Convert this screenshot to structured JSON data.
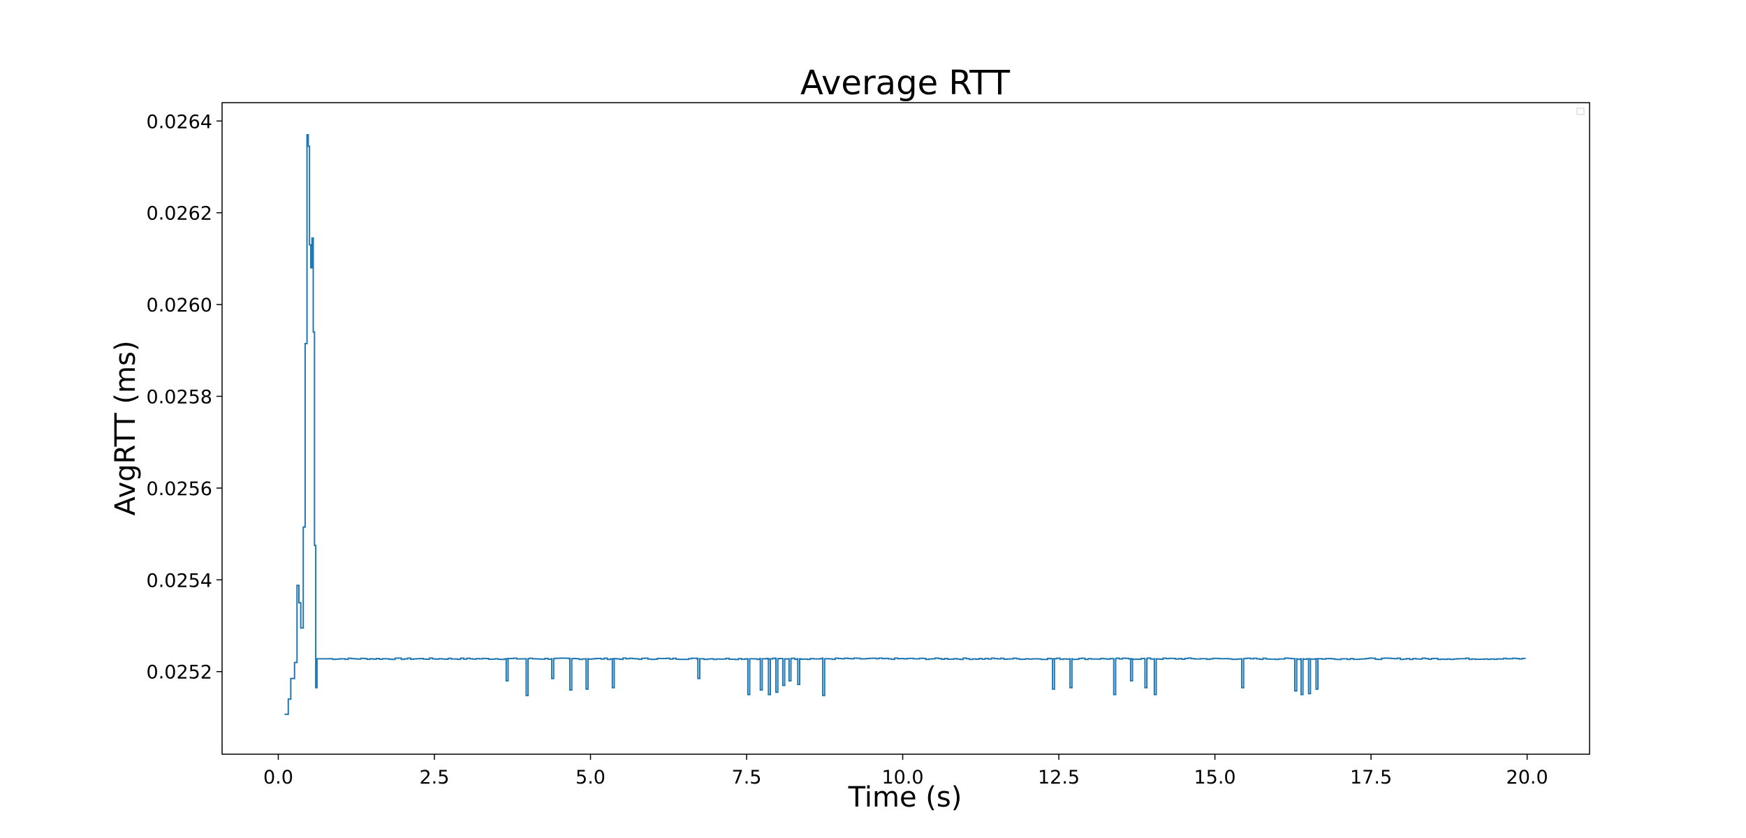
{
  "chart_data": {
    "type": "line",
    "title": "Average RTT",
    "xlabel": "Time (s)",
    "ylabel": "AvgRTT (ms)",
    "xlim": [
      -0.9,
      21.0
    ],
    "ylim": [
      0.02502,
      0.02644
    ],
    "xticks": [
      0.0,
      2.5,
      5.0,
      7.5,
      10.0,
      12.5,
      15.0,
      17.5,
      20.0
    ],
    "xtick_labels": [
      "0.0",
      "2.5",
      "5.0",
      "7.5",
      "10.0",
      "12.5",
      "15.0",
      "17.5",
      "20.0"
    ],
    "yticks": [
      0.0252,
      0.0254,
      0.0256,
      0.0258,
      0.026,
      0.0262,
      0.0264
    ],
    "ytick_labels": [
      "0.0252",
      "0.0254",
      "0.0256",
      "0.0258",
      "0.0260",
      "0.0262",
      "0.0264"
    ],
    "grid": false,
    "legend": "top-right",
    "series": [
      {
        "color": "#1f77b4",
        "baseline": 0.025228,
        "x": [
          0.1,
          0.16,
          0.2,
          0.26,
          0.3,
          0.33,
          0.36,
          0.4,
          0.43,
          0.46,
          0.48,
          0.5,
          0.52,
          0.54,
          0.56,
          0.58,
          0.6,
          0.62,
          0.64,
          0.66,
          0.68,
          0.7,
          0.72
        ],
        "y": [
          0.025107,
          0.02514,
          0.025185,
          0.02522,
          0.025388,
          0.02535,
          0.025295,
          0.025515,
          0.025915,
          0.02637,
          0.026345,
          0.02613,
          0.02608,
          0.026145,
          0.02594,
          0.025475,
          0.025165,
          0.025228,
          0.025228,
          0.025228,
          0.025228,
          0.025228,
          0.025228
        ],
        "dips": [
          {
            "x": 3.65,
            "y": 0.02518
          },
          {
            "x": 3.97,
            "y": 0.025148
          },
          {
            "x": 4.38,
            "y": 0.025185
          },
          {
            "x": 4.67,
            "y": 0.02516
          },
          {
            "x": 4.93,
            "y": 0.025162
          },
          {
            "x": 5.35,
            "y": 0.025165
          },
          {
            "x": 6.72,
            "y": 0.025185
          },
          {
            "x": 7.52,
            "y": 0.02515
          },
          {
            "x": 7.72,
            "y": 0.02516
          },
          {
            "x": 7.85,
            "y": 0.02515
          },
          {
            "x": 7.97,
            "y": 0.025155
          },
          {
            "x": 8.08,
            "y": 0.02517
          },
          {
            "x": 8.18,
            "y": 0.02518
          },
          {
            "x": 8.32,
            "y": 0.025172
          },
          {
            "x": 8.72,
            "y": 0.025148
          },
          {
            "x": 12.4,
            "y": 0.025162
          },
          {
            "x": 12.68,
            "y": 0.025165
          },
          {
            "x": 13.38,
            "y": 0.02515
          },
          {
            "x": 13.65,
            "y": 0.02518
          },
          {
            "x": 13.88,
            "y": 0.025165
          },
          {
            "x": 14.03,
            "y": 0.02515
          },
          {
            "x": 15.43,
            "y": 0.025165
          },
          {
            "x": 16.28,
            "y": 0.025158
          },
          {
            "x": 16.38,
            "y": 0.02515
          },
          {
            "x": 16.5,
            "y": 0.025152
          },
          {
            "x": 16.62,
            "y": 0.025162
          }
        ],
        "x_end": 20.0
      }
    ]
  }
}
